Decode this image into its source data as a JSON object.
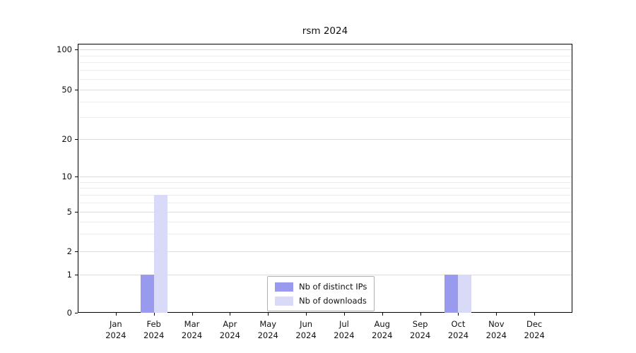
{
  "chart_data": {
    "type": "bar",
    "title": "rsm 2024",
    "yscale": "log-like",
    "grid": true,
    "legend_position": "bottom-center",
    "yticks": [
      0,
      1,
      2,
      5,
      10,
      20,
      50,
      100
    ],
    "ylim": [
      0,
      100
    ],
    "categories": [
      {
        "month": "Jan",
        "year": "2024"
      },
      {
        "month": "Feb",
        "year": "2024"
      },
      {
        "month": "Mar",
        "year": "2024"
      },
      {
        "month": "Apr",
        "year": "2024"
      },
      {
        "month": "May",
        "year": "2024"
      },
      {
        "month": "Jun",
        "year": "2024"
      },
      {
        "month": "Jul",
        "year": "2024"
      },
      {
        "month": "Aug",
        "year": "2024"
      },
      {
        "month": "Sep",
        "year": "2024"
      },
      {
        "month": "Oct",
        "year": "2024"
      },
      {
        "month": "Nov",
        "year": "2024"
      },
      {
        "month": "Dec",
        "year": "2024"
      }
    ],
    "series": [
      {
        "name": "Nb of distinct IPs",
        "color": "#9999ee",
        "values": [
          0,
          1,
          0,
          0,
          0,
          0,
          0,
          0,
          0,
          1,
          0,
          0
        ]
      },
      {
        "name": "Nb of downloads",
        "color": "#d9d9f8",
        "values": [
          0,
          7,
          0,
          0,
          0,
          0,
          0,
          0,
          0,
          1,
          0,
          0
        ]
      }
    ]
  }
}
